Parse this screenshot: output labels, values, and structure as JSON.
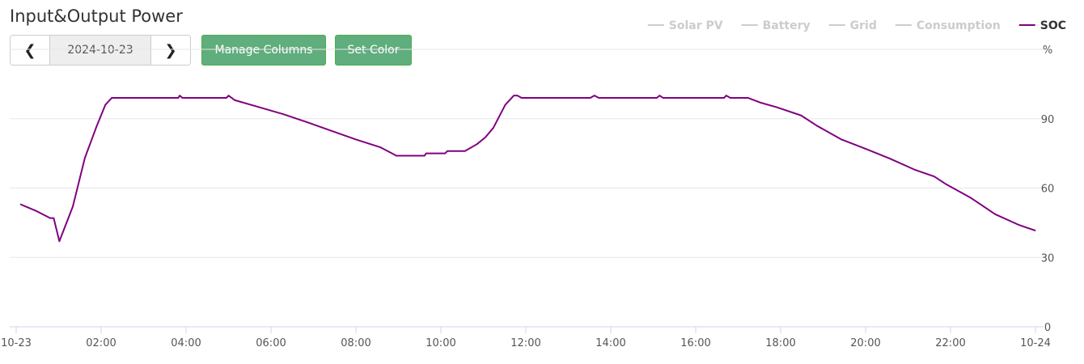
{
  "header": {
    "title": "Input&Output Power",
    "date": "2024-10-23",
    "prev_icon": "chevron-left-icon",
    "next_icon": "chevron-right-icon",
    "manage_columns": "Manage Columns",
    "set_color": "Set Color"
  },
  "chart_data": {
    "type": "line",
    "ylabel": "%",
    "ylim": [
      0,
      120
    ],
    "yticks": [
      "0",
      "30",
      "60",
      "90"
    ],
    "xticks": [
      "10-23",
      "02:00",
      "04:00",
      "06:00",
      "08:00",
      "10:00",
      "12:00",
      "14:00",
      "16:00",
      "18:00",
      "20:00",
      "22:00",
      "10-24"
    ],
    "grid": true,
    "legend_position": "top-right",
    "legend": [
      {
        "name": "Solar PV",
        "color": "#cccccc",
        "visible": false
      },
      {
        "name": "Battery",
        "color": "#cccccc",
        "visible": false
      },
      {
        "name": "Grid",
        "color": "#cccccc",
        "visible": false
      },
      {
        "name": "Consumption",
        "color": "#cccccc",
        "visible": false
      },
      {
        "name": "SOC",
        "color": "#800080",
        "visible": true
      }
    ],
    "series": [
      {
        "name": "SOC",
        "color": "#800080",
        "x": [
          "00:06",
          "00:29",
          "00:48",
          "00:53",
          "01:01",
          "01:20",
          "01:37",
          "01:54",
          "02:06",
          "02:15",
          "03:49",
          "03:51",
          "03:55",
          "04:57",
          "05:00",
          "05:09",
          "05:43",
          "06:17",
          "06:51",
          "07:26",
          "08:00",
          "08:34",
          "08:51",
          "08:57",
          "09:37",
          "09:39",
          "10:06",
          "10:09",
          "10:34",
          "10:51",
          "11:03",
          "11:14",
          "11:31",
          "11:43",
          "11:48",
          "11:54",
          "13:31",
          "13:37",
          "13:43",
          "15:05",
          "15:09",
          "15:14",
          "16:40",
          "16:43",
          "16:49",
          "17:14",
          "17:31",
          "17:54",
          "18:29",
          "18:51",
          "19:26",
          "20:00",
          "20:34",
          "21:09",
          "21:37",
          "21:54",
          "22:29",
          "23:03",
          "23:37",
          "24:00"
        ],
        "values": [
          53,
          50,
          47,
          47,
          37,
          52,
          73,
          87,
          96,
          99,
          99,
          100,
          99,
          99,
          100,
          98,
          95,
          92,
          88.5,
          84.7,
          81,
          77.7,
          75,
          74,
          74,
          75,
          75,
          76,
          76,
          79,
          82,
          86,
          96,
          100,
          100,
          99,
          99,
          100,
          99,
          99,
          100,
          99,
          99,
          100,
          99,
          99,
          97,
          95,
          91.4,
          87,
          81,
          77,
          72.8,
          68,
          65,
          61.6,
          55.7,
          48.7,
          44,
          41.6
        ]
      }
    ]
  }
}
